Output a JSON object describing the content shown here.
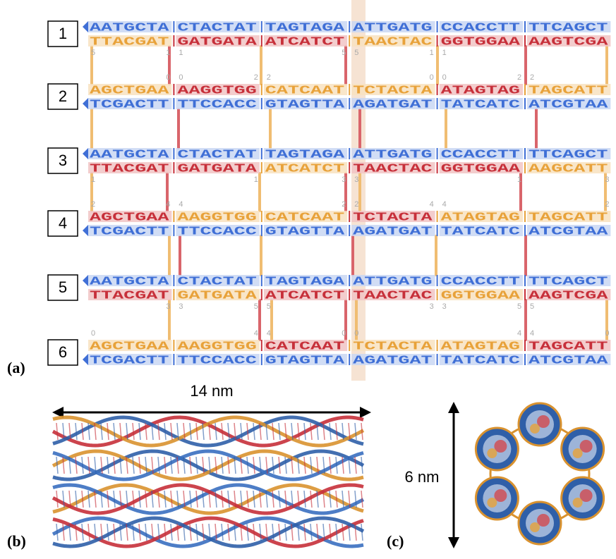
{
  "panel_a": {
    "label": "(a)",
    "helices": [
      {
        "number": "1",
        "strands": [
          {
            "segments": [
              {
                "seq": "AATGCTA",
                "color": "#3f6fd6"
              },
              {
                "seq": "CTACTAT",
                "color": "#3f6fd6"
              },
              {
                "seq": "TAGTAGA",
                "color": "#3f6fd6"
              },
              {
                "seq": "ATTGATG",
                "color": "#3f6fd6"
              },
              {
                "seq": "CCACCTT",
                "color": "#3f6fd6"
              },
              {
                "seq": "TTCAGCT",
                "color": "#3f6fd6"
              }
            ]
          },
          {
            "segments": [
              {
                "seq": "TTACGAT",
                "color": "#e8a23a"
              },
              {
                "seq": "GATGATA",
                "color": "#c7303a"
              },
              {
                "seq": "ATCATCT",
                "color": "#c7303a"
              },
              {
                "seq": "TAACTAC",
                "color": "#e8a23a"
              },
              {
                "seq": "GGTGGAA",
                "color": "#c7303a"
              },
              {
                "seq": "AAGTCGA",
                "color": "#c7303a"
              }
            ],
            "end_labels": [
              "5",
              "1",
              "1",
              null,
              null,
              "5",
              "5",
              "1",
              "1",
              null,
              null,
              null
            ]
          }
        ]
      },
      {
        "number": "2",
        "strands": [
          {
            "segments": [
              {
                "seq": "AGCTGAA",
                "color": "#e8a23a"
              },
              {
                "seq": "AAGGTGG",
                "color": "#c7303a"
              },
              {
                "seq": "CATCAAT",
                "color": "#e8a23a"
              },
              {
                "seq": "TCTACTA",
                "color": "#e8a23a"
              },
              {
                "seq": "ATAGTAG",
                "color": "#c7303a"
              },
              {
                "seq": "TAGCATT",
                "color": "#e8a23a"
              }
            ],
            "end_labels": [
              null,
              "0",
              "0",
              "2",
              "2",
              null,
              null,
              "0",
              "0",
              "2",
              "2",
              null
            ]
          },
          {
            "segments": [
              {
                "seq": "TCGACTT",
                "color": "#3f6fd6"
              },
              {
                "seq": "TTCCACC",
                "color": "#3f6fd6"
              },
              {
                "seq": "GTAGTTA",
                "color": "#3f6fd6"
              },
              {
                "seq": "AGATGAT",
                "color": "#3f6fd6"
              },
              {
                "seq": "TATCATC",
                "color": "#3f6fd6"
              },
              {
                "seq": "ATCGTAA",
                "color": "#3f6fd6"
              }
            ]
          }
        ]
      },
      {
        "number": "3",
        "strands": [
          {
            "segments": [
              {
                "seq": "AATGCTA",
                "color": "#3f6fd6"
              },
              {
                "seq": "CTACTAT",
                "color": "#3f6fd6"
              },
              {
                "seq": "TAGTAGA",
                "color": "#3f6fd6"
              },
              {
                "seq": "ATTGATG",
                "color": "#3f6fd6"
              },
              {
                "seq": "CCACCTT",
                "color": "#3f6fd6"
              },
              {
                "seq": "TTCAGCT",
                "color": "#3f6fd6"
              }
            ]
          },
          {
            "segments": [
              {
                "seq": "TTACGAT",
                "color": "#c7303a"
              },
              {
                "seq": "GATGATA",
                "color": "#c7303a"
              },
              {
                "seq": "ATCATCT",
                "color": "#e8a23a"
              },
              {
                "seq": "TAACTAC",
                "color": "#c7303a"
              },
              {
                "seq": "GGTGGAA",
                "color": "#c7303a"
              },
              {
                "seq": "AAGCATT",
                "color": "#e8a23a"
              }
            ],
            "end_labels": [
              "1",
              null,
              null,
              "1",
              null,
              "3",
              "3",
              null,
              null,
              "1",
              null,
              "3"
            ]
          }
        ]
      },
      {
        "number": "4",
        "strands": [
          {
            "segments": [
              {
                "seq": "AGCTGAA",
                "color": "#c7303a"
              },
              {
                "seq": "AAGGTGG",
                "color": "#e8a23a"
              },
              {
                "seq": "CATCAAT",
                "color": "#e8a23a"
              },
              {
                "seq": "TCTACTA",
                "color": "#c7303a"
              },
              {
                "seq": "ATAGTAG",
                "color": "#e8a23a"
              },
              {
                "seq": "TAGCATT",
                "color": "#e8a23a"
              }
            ],
            "end_labels": [
              "2",
              "4",
              "4",
              null,
              null,
              "2",
              "2",
              "4",
              "4",
              null,
              null,
              "2"
            ]
          },
          {
            "segments": [
              {
                "seq": "TCGACTT",
                "color": "#3f6fd6"
              },
              {
                "seq": "TTCCACC",
                "color": "#3f6fd6"
              },
              {
                "seq": "GTAGTTA",
                "color": "#3f6fd6"
              },
              {
                "seq": "AGATGAT",
                "color": "#3f6fd6"
              },
              {
                "seq": "TATCATC",
                "color": "#3f6fd6"
              },
              {
                "seq": "ATCGTAA",
                "color": "#3f6fd6"
              }
            ]
          }
        ]
      },
      {
        "number": "5",
        "strands": [
          {
            "segments": [
              {
                "seq": "AATGCTA",
                "color": "#3f6fd6"
              },
              {
                "seq": "CTACTAT",
                "color": "#3f6fd6"
              },
              {
                "seq": "TAGTAGA",
                "color": "#3f6fd6"
              },
              {
                "seq": "ATTGATG",
                "color": "#3f6fd6"
              },
              {
                "seq": "CCACCTT",
                "color": "#3f6fd6"
              },
              {
                "seq": "TTCAGCT",
                "color": "#3f6fd6"
              }
            ]
          },
          {
            "segments": [
              {
                "seq": "TTACGAT",
                "color": "#c7303a"
              },
              {
                "seq": "GATGATA",
                "color": "#e8a23a"
              },
              {
                "seq": "ATCATCT",
                "color": "#c7303a"
              },
              {
                "seq": "TAACTAC",
                "color": "#c7303a"
              },
              {
                "seq": "GGTGGAA",
                "color": "#e8a23a"
              },
              {
                "seq": "AAGTCGA",
                "color": "#c7303a"
              }
            ],
            "end_labels": [
              null,
              "3",
              "3",
              "5",
              "5",
              null,
              null,
              "3",
              "3",
              "5",
              "5",
              null
            ]
          }
        ]
      },
      {
        "number": "6",
        "strands": [
          {
            "segments": [
              {
                "seq": "AGCTGAA",
                "color": "#e8a23a"
              },
              {
                "seq": "AAGGTGG",
                "color": "#e8a23a"
              },
              {
                "seq": "CATCAAT",
                "color": "#c7303a"
              },
              {
                "seq": "TCTACTA",
                "color": "#e8a23a"
              },
              {
                "seq": "ATAGTAG",
                "color": "#e8a23a"
              },
              {
                "seq": "TAGCATT",
                "color": "#c7303a"
              }
            ],
            "end_labels": [
              "0",
              null,
              null,
              "4",
              "4",
              "0",
              "0",
              null,
              null,
              "4",
              "4",
              "0"
            ]
          },
          {
            "segments": [
              {
                "seq": "TCGACTT",
                "color": "#3f6fd6"
              },
              {
                "seq": "TTCCACC",
                "color": "#3f6fd6"
              },
              {
                "seq": "GTAGTTA",
                "color": "#3f6fd6"
              },
              {
                "seq": "AGATGAT",
                "color": "#3f6fd6"
              },
              {
                "seq": "TATCATC",
                "color": "#3f6fd6"
              },
              {
                "seq": "ATCGTAA",
                "color": "#3f6fd6"
              }
            ]
          }
        ]
      }
    ]
  },
  "panel_b": {
    "label": "(b)",
    "dimension": "14 nm"
  },
  "panel_c": {
    "label": "(c)",
    "dimension": "6 nm"
  }
}
